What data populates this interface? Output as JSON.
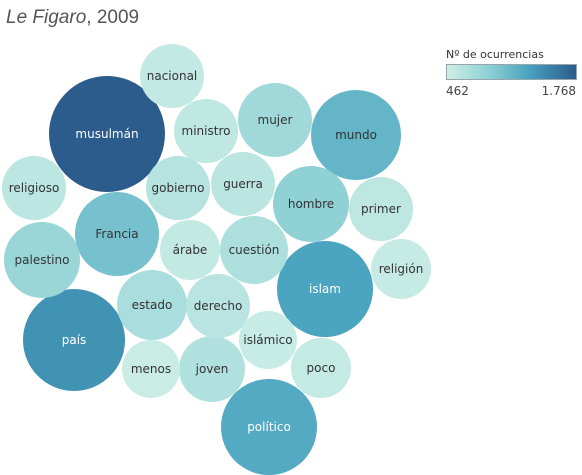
{
  "title": {
    "paper": "Le Figaro",
    "rest": ", 2009"
  },
  "legend": {
    "title": "Nº de ocurrencias",
    "min_label": "462",
    "max_label": "1.768",
    "min": 462,
    "max": 1768,
    "color_low": "#cdeee6",
    "color_high": "#2c5c8c"
  },
  "chart_data": {
    "type": "packed-bubble",
    "title": "Le Figaro, 2009",
    "color_legend": {
      "title": "Nº de ocurrencias",
      "min": 462,
      "max": 1768
    },
    "bubbles": [
      {
        "label": "musulmán",
        "value": 1768
      },
      {
        "label": "país",
        "value": 1400
      },
      {
        "label": "islam",
        "value": 1280
      },
      {
        "label": "político",
        "value": 1230
      },
      {
        "label": "mundo",
        "value": 1130
      },
      {
        "label": "Francia",
        "value": 1030
      },
      {
        "label": "hombre",
        "value": 880
      },
      {
        "label": "palestino",
        "value": 810
      },
      {
        "label": "mujer",
        "value": 760
      },
      {
        "label": "estado",
        "value": 700
      },
      {
        "label": "cuestión",
        "value": 680
      },
      {
        "label": "joven",
        "value": 650
      },
      {
        "label": "gobierno",
        "value": 620
      },
      {
        "label": "derecho",
        "value": 600
      },
      {
        "label": "guerra",
        "value": 590
      },
      {
        "label": "religioso",
        "value": 580
      },
      {
        "label": "primer",
        "value": 560
      },
      {
        "label": "ministro",
        "value": 550
      },
      {
        "label": "nacional",
        "value": 540
      },
      {
        "label": "árabe",
        "value": 530
      },
      {
        "label": "poco",
        "value": 520
      },
      {
        "label": "religión",
        "value": 510
      },
      {
        "label": "islámico",
        "value": 500
      },
      {
        "label": "menos",
        "value": 490
      }
    ]
  }
}
